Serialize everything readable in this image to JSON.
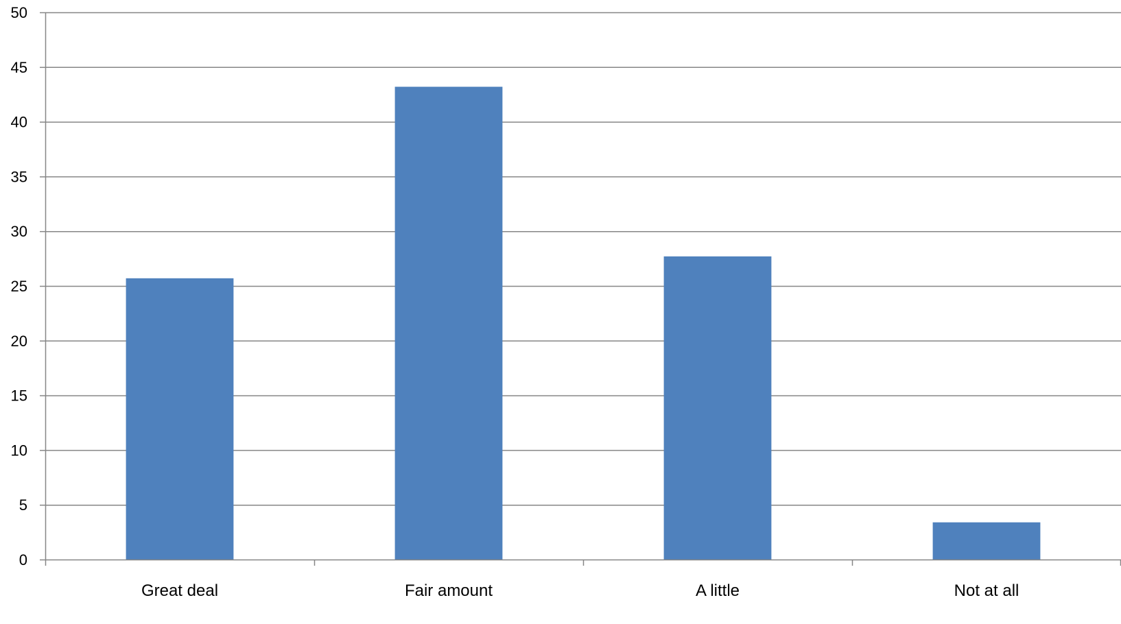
{
  "chart_data": {
    "type": "bar",
    "categories": [
      "Great deal",
      "Fair amount",
      "A little",
      "Not at all"
    ],
    "values": [
      25.7,
      43.2,
      27.7,
      3.4
    ],
    "ylim": [
      0,
      50
    ],
    "yticks": [
      0,
      5,
      10,
      15,
      20,
      25,
      30,
      35,
      40,
      45,
      50
    ],
    "grid": true,
    "legend": "none",
    "colors": {
      "bar": "#4F81BD",
      "grid": "#868686",
      "axis": "#868686"
    }
  }
}
